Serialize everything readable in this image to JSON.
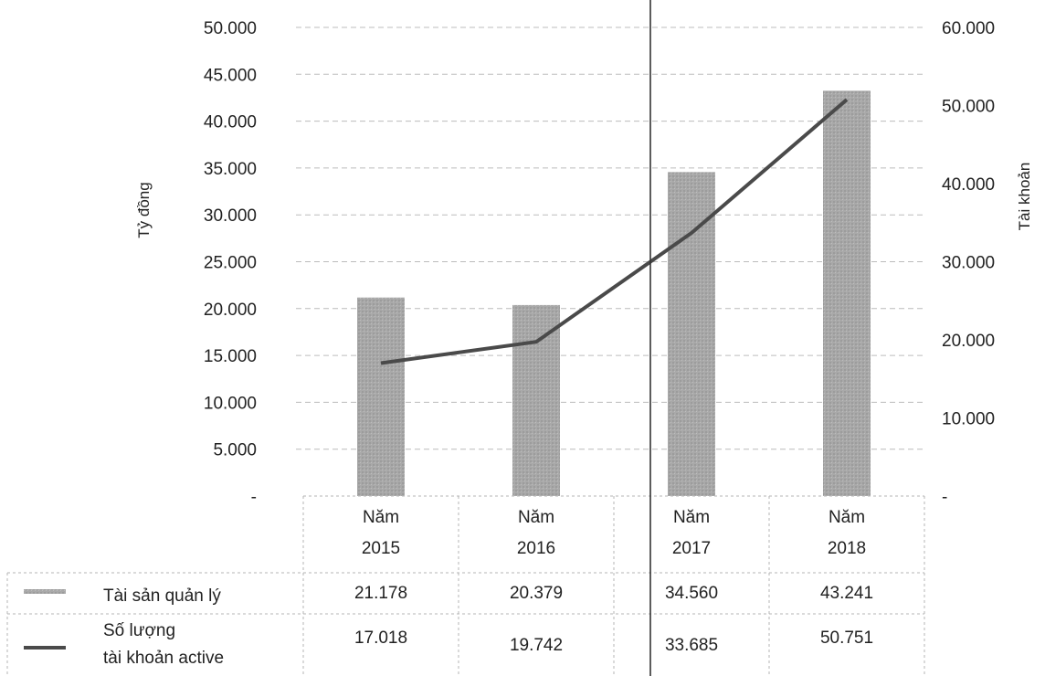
{
  "chart_data": {
    "type": "bar",
    "categories": [
      {
        "line1": "Năm",
        "line2": "2015"
      },
      {
        "line1": "Năm",
        "line2": "2016"
      },
      {
        "line1": "Năm",
        "line2": "2017"
      },
      {
        "line1": "Năm",
        "line2": "2018"
      }
    ],
    "y_left": {
      "label": "Tỷ đồng",
      "range": [
        0,
        50000
      ],
      "ticks": [
        "-",
        "5.000",
        "10.000",
        "15.000",
        "20.000",
        "25.000",
        "30.000",
        "35.000",
        "40.000",
        "45.000",
        "50.000"
      ]
    },
    "y_right": {
      "label": "Tài khoản",
      "range": [
        0,
        60000
      ],
      "ticks": [
        "-",
        "10.000",
        "20.000",
        "30.000",
        "40.000",
        "50.000",
        "60.000"
      ]
    },
    "series": [
      {
        "name": "Tài sản quản lý",
        "type": "bar",
        "axis": "left",
        "values": [
          21178,
          20379,
          34560,
          43241
        ],
        "labels": [
          "21.178",
          "20.379",
          "34.560",
          "43.241"
        ],
        "color": "#a9a9a9"
      },
      {
        "name_lines": [
          "Số lượng",
          "tài khoản active"
        ],
        "type": "line",
        "axis": "right",
        "values": [
          17018,
          19742,
          33685,
          50751
        ],
        "labels": [
          "17.018",
          "19.742",
          "33.685",
          "50.751"
        ],
        "color": "#4a4a4a"
      }
    ],
    "grid": true,
    "legend": "data-table"
  }
}
